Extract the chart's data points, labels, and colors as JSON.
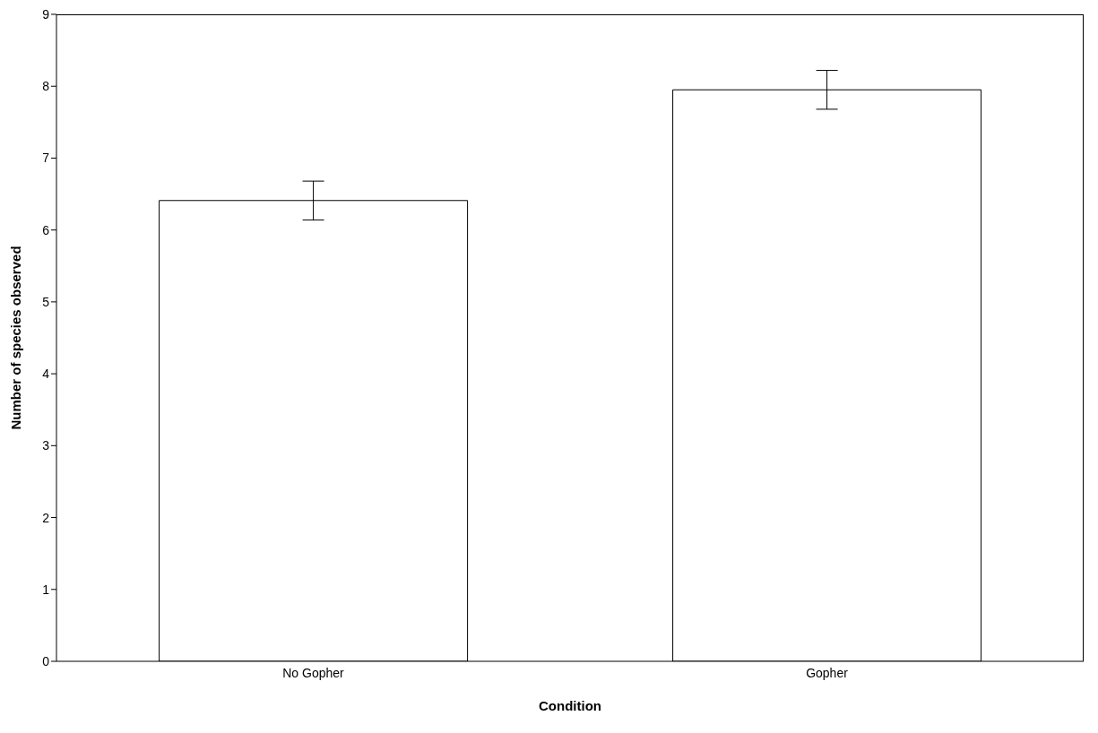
{
  "chart_data": {
    "type": "bar",
    "xlabel": "Condition",
    "ylabel": "Number of species observed",
    "categories": [
      "No Gopher",
      "Gopher"
    ],
    "values": [
      6.41,
      7.95
    ],
    "errors": [
      0.27,
      0.27
    ],
    "color": "#ffffff",
    "ylim": [
      0,
      9
    ],
    "yticks": [
      0,
      1,
      2,
      3,
      4,
      5,
      6,
      7,
      8,
      9
    ],
    "grid": false
  }
}
